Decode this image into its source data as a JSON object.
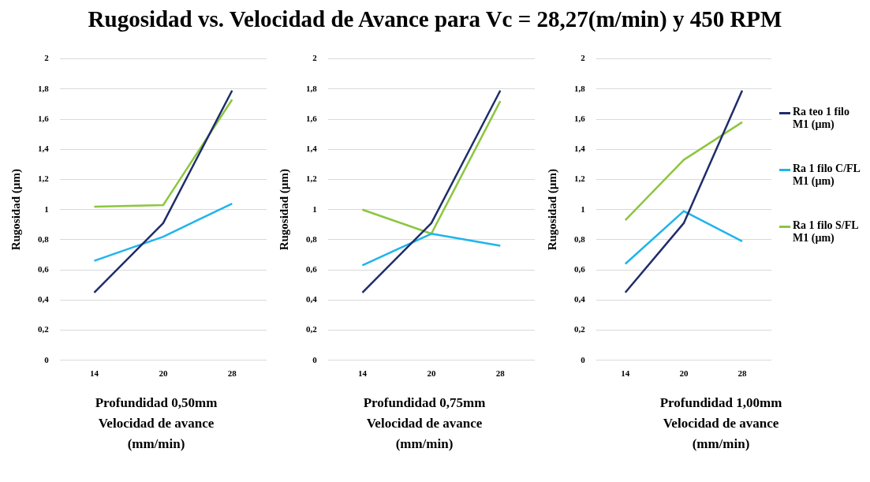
{
  "chart_data": [
    {
      "type": "line",
      "title": "Rugosidad vs. Velocidad de Avance para Vc = 28,27(m/min) y 450 RPM",
      "xlabel": "Profundidad 0,50mm\nVelocidad de avance\n(mm/min)",
      "ylabel": "Rugosidad (µm)",
      "categories": [
        "14",
        "20",
        "28"
      ],
      "series": [
        {
          "color": "#1f2d6b",
          "values": [
            0.45,
            0.91,
            1.79
          ]
        },
        {
          "color": "#1fb4ee",
          "values": [
            0.66,
            0.82,
            1.04
          ]
        },
        {
          "color": "#8cc63f",
          "values": [
            1.02,
            1.03,
            1.73
          ]
        }
      ],
      "ylim": [
        0,
        2
      ],
      "yticks": [
        0,
        {
          "value": 0.2,
          "label": "0,2"
        },
        {
          "value": 0.4,
          "label": "0,4"
        },
        {
          "value": 0.6,
          "label": "0,6"
        },
        {
          "value": 0.8,
          "label": "0,8"
        },
        1,
        {
          "value": 1.2,
          "label": "1,2"
        },
        {
          "value": 1.4,
          "label": "1,4"
        },
        {
          "value": 1.6,
          "label": "1,6"
        },
        {
          "value": 1.8,
          "label": "1,8"
        },
        2
      ],
      "grid": "y",
      "marker": "none"
    },
    {
      "type": "line",
      "xlabel": "Profundidad 0,75mm\nVelocidad de avance\n(mm/min)",
      "ylabel": "Rugosidad (µm)",
      "categories": [
        "14",
        "20",
        "28"
      ],
      "series": [
        {
          "color": "#1f2d6b",
          "values": [
            0.45,
            0.91,
            1.79
          ]
        },
        {
          "color": "#1fb4ee",
          "values": [
            0.63,
            0.84,
            0.76
          ]
        },
        {
          "color": "#8cc63f",
          "values": [
            1.0,
            0.84,
            1.72
          ]
        }
      ],
      "ylim": [
        0,
        2
      ],
      "yticks": [
        0,
        {
          "value": 0.2,
          "label": "0,2"
        },
        {
          "value": 0.4,
          "label": "0,4"
        },
        {
          "value": 0.6,
          "label": "0,6"
        },
        {
          "value": 0.8,
          "label": "0,8"
        },
        1,
        {
          "value": 1.2,
          "label": "1,2"
        },
        {
          "value": 1.4,
          "label": "1,4"
        },
        {
          "value": 1.6,
          "label": "1,6"
        },
        {
          "value": 1.8,
          "label": "1,8"
        },
        2
      ],
      "grid": "y",
      "marker": "none"
    },
    {
      "type": "line",
      "xlabel": "Profundidad 1,00mm\nVelocidad de avance\n(mm/min)",
      "ylabel": "Rugosidad (µm)",
      "categories": [
        "14",
        "20",
        "28"
      ],
      "series": [
        {
          "name": "Ra teo 1 filo M1 (µm)",
          "color": "#1f2d6b",
          "values": [
            0.45,
            0.91,
            1.79
          ]
        },
        {
          "name": "Ra 1 filo C/FL M1 (µm)",
          "color": "#1fb4ee",
          "values": [
            0.64,
            0.99,
            0.79
          ]
        },
        {
          "name": "Ra 1 filo S/FL M1 (µm)",
          "color": "#8cc63f",
          "values": [
            0.93,
            1.33,
            1.58
          ]
        }
      ],
      "ylim": [
        0,
        2
      ],
      "yticks": [
        0,
        {
          "value": 0.2,
          "label": "0,2"
        },
        {
          "value": 0.4,
          "label": "0,4"
        },
        {
          "value": 0.6,
          "label": "0,6"
        },
        {
          "value": 0.8,
          "label": "0,8"
        },
        1,
        {
          "value": 1.2,
          "label": "1,2"
        },
        {
          "value": 1.4,
          "label": "1,4"
        },
        {
          "value": 1.6,
          "label": "1,6"
        },
        {
          "value": 1.8,
          "label": "1,8"
        },
        2
      ],
      "grid": "y",
      "marker": "none",
      "legend": "right"
    }
  ]
}
